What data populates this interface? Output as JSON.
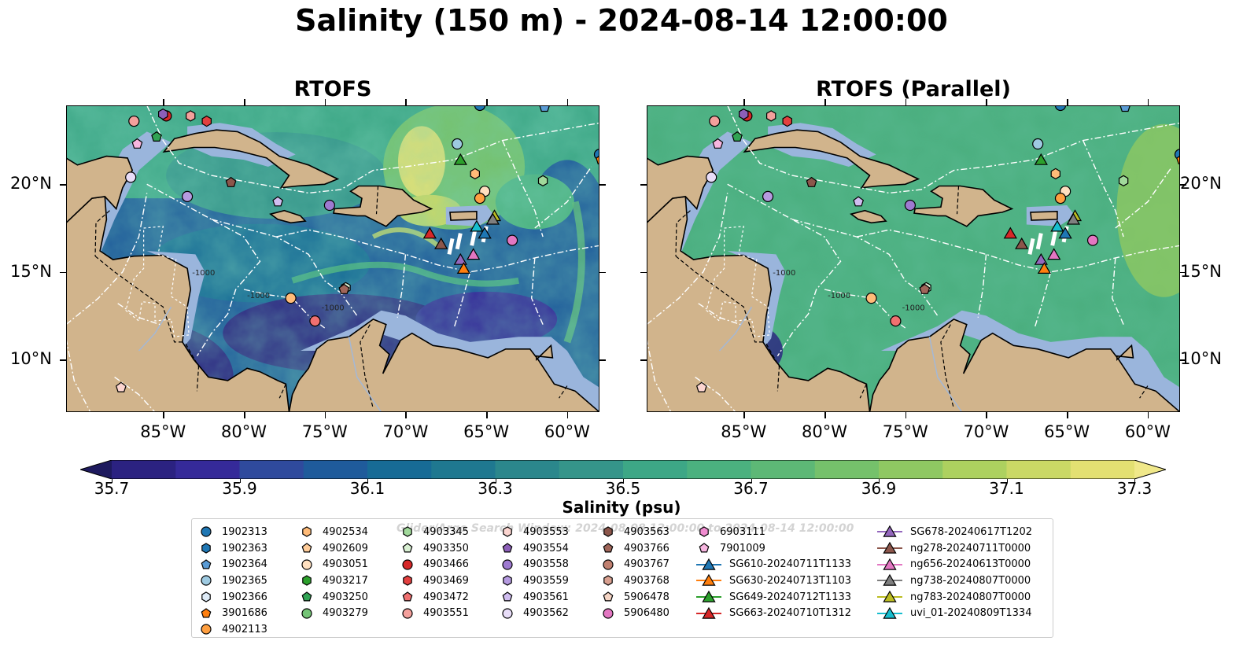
{
  "title": "Salinity (150 m) - 2024-08-14 12:00:00",
  "panels": [
    {
      "title": "RTOFS",
      "variant": "high-variability"
    },
    {
      "title": "RTOFS (Parallel)",
      "variant": "smooth"
    }
  ],
  "map": {
    "lon_range": [
      -91,
      -58
    ],
    "lat_range": [
      7,
      24.5
    ],
    "lon_ticks": [
      "85°W",
      "80°W",
      "75°W",
      "70°W",
      "65°W",
      "60°W"
    ],
    "lat_ticks": [
      "20°N",
      "15°N",
      "10°N"
    ],
    "bathymetry_labels": [
      "-1000",
      "-1000",
      "-1000"
    ],
    "colors": {
      "land": "#d1b48c",
      "shelf": "#9ab5dc",
      "boundaries": "#ffffff"
    }
  },
  "colorbar": {
    "label": "Salinity (psu)",
    "min": 35.7,
    "max": 37.3,
    "step": 0.1,
    "tick_labels": [
      "35.7",
      "35.9",
      "36.1",
      "36.3",
      "36.5",
      "36.7",
      "36.9",
      "37.1",
      "37.3"
    ],
    "colors": [
      "#2b2281",
      "#352a99",
      "#2f4a9d",
      "#1f5b9b",
      "#176b96",
      "#1f7890",
      "#2b878c",
      "#35958a",
      "#3da786",
      "#4bb17f",
      "#5db876",
      "#75c16b",
      "#8fc862",
      "#add15f",
      "#cad865",
      "#e3e072"
    ],
    "extend": "both"
  },
  "legend": {
    "watermark": "Glider/Argo Search Window: 2024-08-08 12:00:00 to 2024-08-14 12:00:00",
    "columns": [
      [
        {
          "label": "1902313",
          "marker": "circle",
          "color": "#1f77b4"
        },
        {
          "label": "1902363",
          "marker": "hexagon",
          "color": "#1f77b4"
        },
        {
          "label": "1902364",
          "marker": "pentagon",
          "color": "#5a9bd5"
        },
        {
          "label": "1902365",
          "marker": "circle",
          "color": "#9ecae1"
        },
        {
          "label": "1902366",
          "marker": "hexagon",
          "color": "#deebf7"
        },
        {
          "label": "3901686",
          "marker": "pentagon",
          "color": "#ff7f0e"
        },
        {
          "label": "4902113",
          "marker": "circle",
          "color": "#ff9f40"
        }
      ],
      [
        {
          "label": "4902534",
          "marker": "hexagon",
          "color": "#ffbb78"
        },
        {
          "label": "4902609",
          "marker": "pentagon",
          "color": "#ffcc99"
        },
        {
          "label": "4903051",
          "marker": "circle",
          "color": "#ffe0c0"
        },
        {
          "label": "4903217",
          "marker": "hexagon",
          "color": "#2ca02c"
        },
        {
          "label": "4903250",
          "marker": "pentagon",
          "color": "#31a354"
        },
        {
          "label": "4903279",
          "marker": "circle",
          "color": "#74c476"
        }
      ],
      [
        {
          "label": "4903345",
          "marker": "hexagon",
          "color": "#a1d99b"
        },
        {
          "label": "4903350",
          "marker": "pentagon",
          "color": "#d9f0d3"
        },
        {
          "label": "4903466",
          "marker": "circle",
          "color": "#d62728"
        },
        {
          "label": "4903469",
          "marker": "hexagon",
          "color": "#e3403f"
        },
        {
          "label": "4903472",
          "marker": "pentagon",
          "color": "#f07070"
        },
        {
          "label": "4903551",
          "marker": "circle",
          "color": "#f4a09c"
        }
      ],
      [
        {
          "label": "4903553",
          "marker": "hexagon",
          "color": "#fcd5d0"
        },
        {
          "label": "4903554",
          "marker": "pentagon",
          "color": "#8c5fb8"
        },
        {
          "label": "4903558",
          "marker": "circle",
          "color": "#9e7ad0"
        },
        {
          "label": "4903559",
          "marker": "hexagon",
          "color": "#b59ae0"
        },
        {
          "label": "4903561",
          "marker": "pentagon",
          "color": "#d0bdf0"
        },
        {
          "label": "4903562",
          "marker": "circle",
          "color": "#e8ddf8"
        }
      ],
      [
        {
          "label": "4903563",
          "marker": "hexagon",
          "color": "#8c564b"
        },
        {
          "label": "4903766",
          "marker": "pentagon",
          "color": "#a0665a"
        },
        {
          "label": "4903767",
          "marker": "circle",
          "color": "#c08070"
        },
        {
          "label": "4903768",
          "marker": "hexagon",
          "color": "#d9a090"
        },
        {
          "label": "5906478",
          "marker": "pentagon",
          "color": "#f5d5c5"
        },
        {
          "label": "5906480",
          "marker": "circle",
          "color": "#e377c2"
        }
      ],
      [
        {
          "label": "6903111",
          "marker": "hexagon",
          "color": "#f08cd0"
        },
        {
          "label": "7901009",
          "marker": "pentagon",
          "color": "#f7b6e0"
        },
        {
          "label": "SG610-20240711T1133",
          "marker": "triangle",
          "color": "#1f77b4",
          "line": true
        },
        {
          "label": "SG630-20240713T1103",
          "marker": "triangle",
          "color": "#ff7f0e",
          "line": true
        },
        {
          "label": "SG649-20240712T1133",
          "marker": "triangle",
          "color": "#2ca02c",
          "line": true
        },
        {
          "label": "SG663-20240710T1312",
          "marker": "triangle",
          "color": "#d62728",
          "line": true
        }
      ],
      [
        {
          "label": "SG678-20240617T1202",
          "marker": "triangle",
          "color": "#9467bd",
          "line": true
        },
        {
          "label": "ng278-20240711T0000",
          "marker": "triangle",
          "color": "#8c564b",
          "line": true
        },
        {
          "label": "ng656-20240613T0000",
          "marker": "triangle",
          "color": "#e377c2",
          "line": true
        },
        {
          "label": "ng738-20240807T0000",
          "marker": "triangle",
          "color": "#7f7f7f",
          "line": true
        },
        {
          "label": "ng783-20240807T0000",
          "marker": "triangle",
          "color": "#bcbd22",
          "line": true
        },
        {
          "label": "uvi_01-20240809T1334",
          "marker": "triangle",
          "color": "#17becf",
          "line": true
        }
      ]
    ]
  },
  "markers": [
    {
      "lon": -84.8,
      "lat": 23.9,
      "shape": "circle",
      "color": "#d62728"
    },
    {
      "lon": -85.0,
      "lat": 24.0,
      "shape": "hexagon",
      "color": "#8c5fb8"
    },
    {
      "lon": -86.8,
      "lat": 23.6,
      "shape": "circle",
      "color": "#f4a09c"
    },
    {
      "lon": -86.6,
      "lat": 22.3,
      "shape": "pentagon",
      "color": "#f7b6e0"
    },
    {
      "lon": -85.4,
      "lat": 22.7,
      "shape": "pentagon",
      "color": "#31a354"
    },
    {
      "lon": -83.3,
      "lat": 23.9,
      "shape": "hexagon",
      "color": "#f4a09c"
    },
    {
      "lon": -82.3,
      "lat": 23.6,
      "shape": "hexagon",
      "color": "#e3403f"
    },
    {
      "lon": -87.0,
      "lat": 20.4,
      "shape": "circle",
      "color": "#e8ddf8"
    },
    {
      "lon": -83.5,
      "lat": 19.3,
      "shape": "circle",
      "color": "#b59ae0"
    },
    {
      "lon": -80.8,
      "lat": 20.1,
      "shape": "pentagon",
      "color": "#8c564b"
    },
    {
      "lon": -77.9,
      "lat": 19.0,
      "shape": "pentagon",
      "color": "#d0bdf0"
    },
    {
      "lon": -74.7,
      "lat": 18.8,
      "shape": "circle",
      "color": "#9e7ad0"
    },
    {
      "lon": -66.8,
      "lat": 22.3,
      "shape": "circle",
      "color": "#9ecae1"
    },
    {
      "lon": -65.4,
      "lat": 24.5,
      "shape": "circle",
      "color": "#1f77b4"
    },
    {
      "lon": -61.4,
      "lat": 24.4,
      "shape": "pentagon",
      "color": "#5a9bd5"
    },
    {
      "lon": -65.7,
      "lat": 20.6,
      "shape": "hexagon",
      "color": "#ffbb78"
    },
    {
      "lon": -65.1,
      "lat": 19.6,
      "shape": "circle",
      "color": "#ffe0c0"
    },
    {
      "lon": -65.4,
      "lat": 19.2,
      "shape": "circle",
      "color": "#ff9f40"
    },
    {
      "lon": -61.5,
      "lat": 20.2,
      "shape": "hexagon",
      "color": "#a1d99b"
    },
    {
      "lon": -58.0,
      "lat": 21.7,
      "shape": "circle",
      "color": "#1f77b4"
    },
    {
      "lon": -57.9,
      "lat": 21.4,
      "shape": "pentagon",
      "color": "#ff7f0e"
    },
    {
      "lon": -63.4,
      "lat": 16.8,
      "shape": "circle",
      "color": "#e377c2"
    },
    {
      "lon": -73.7,
      "lat": 14.1,
      "shape": "hexagon",
      "color": "#d9f0d3"
    },
    {
      "lon": -73.8,
      "lat": 14.0,
      "shape": "pentagon",
      "color": "#a0665a"
    },
    {
      "lon": -77.1,
      "lat": 13.5,
      "shape": "circle",
      "color": "#ffbb78"
    },
    {
      "lon": -75.6,
      "lat": 12.2,
      "shape": "circle",
      "color": "#f07070"
    },
    {
      "lon": -87.6,
      "lat": 8.4,
      "shape": "pentagon",
      "color": "#fcd5d0"
    },
    {
      "lon": -66.6,
      "lat": 21.4,
      "shape": "triangle",
      "color": "#2ca02c"
    },
    {
      "lon": -68.5,
      "lat": 17.2,
      "shape": "triangle",
      "color": "#d62728"
    },
    {
      "lon": -67.8,
      "lat": 16.6,
      "shape": "triangle",
      "color": "#8c564b"
    },
    {
      "lon": -66.6,
      "lat": 15.7,
      "shape": "triangle",
      "color": "#9467bd"
    },
    {
      "lon": -66.4,
      "lat": 15.2,
      "shape": "triangle",
      "color": "#ff7f0e"
    },
    {
      "lon": -65.8,
      "lat": 16.0,
      "shape": "triangle",
      "color": "#e377c2"
    },
    {
      "lon": -65.6,
      "lat": 17.6,
      "shape": "triangle",
      "color": "#17becf"
    },
    {
      "lon": -65.1,
      "lat": 17.2,
      "shape": "triangle",
      "color": "#1f77b4"
    },
    {
      "lon": -64.5,
      "lat": 18.2,
      "shape": "triangle",
      "color": "#bcbd22"
    },
    {
      "lon": -64.6,
      "lat": 18.0,
      "shape": "triangle",
      "color": "#7f7f7f"
    }
  ]
}
